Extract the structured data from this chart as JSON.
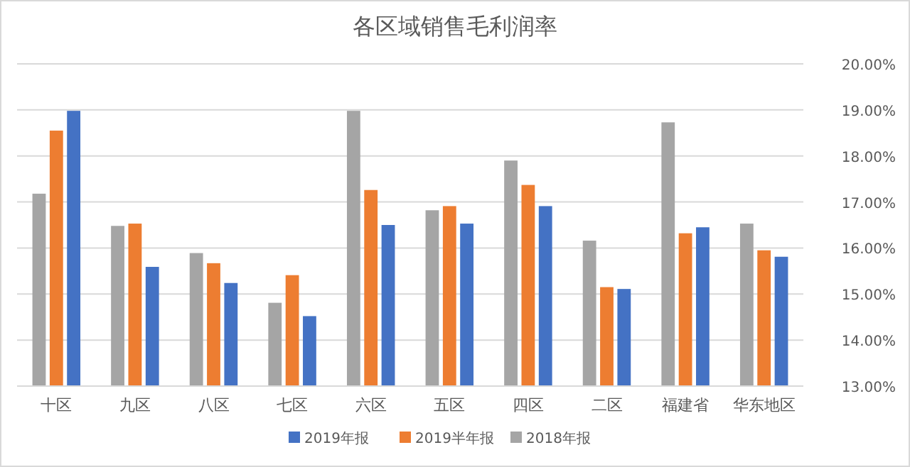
{
  "chart_data": {
    "type": "bar",
    "title": "各区域销售毛利润率",
    "categories": [
      "十区",
      "九区",
      "八区",
      "七区",
      "六区",
      "五区",
      "四区",
      "二区",
      "福建省",
      "华东地区"
    ],
    "series": [
      {
        "name": "2018年报",
        "color": "#a5a5a5",
        "values": [
          17.18,
          16.48,
          15.89,
          14.81,
          18.98,
          16.82,
          17.9,
          16.16,
          18.73,
          16.53
        ]
      },
      {
        "name": "2019半年报",
        "color": "#ed7d31",
        "values": [
          18.55,
          16.53,
          15.67,
          15.41,
          17.26,
          16.91,
          17.37,
          15.15,
          16.32,
          15.95
        ]
      },
      {
        "name": "2019年报",
        "color": "#4472c4",
        "values": [
          18.98,
          15.59,
          15.24,
          14.52,
          16.5,
          16.53,
          16.91,
          15.11,
          16.45,
          15.81
        ]
      }
    ],
    "ylim": [
      13,
      20
    ],
    "yticks": [
      {
        "value": 13,
        "label": "13.00%"
      },
      {
        "value": 14,
        "label": "14.00%"
      },
      {
        "value": 15,
        "label": "15.00%"
      },
      {
        "value": 16,
        "label": "16.00%"
      },
      {
        "value": 17,
        "label": "17.00%"
      },
      {
        "value": 18,
        "label": "18.00%"
      },
      {
        "value": 19,
        "label": "19.00%"
      },
      {
        "value": 20,
        "label": "20.00%"
      }
    ],
    "grid": "y",
    "legend": "bottom"
  }
}
